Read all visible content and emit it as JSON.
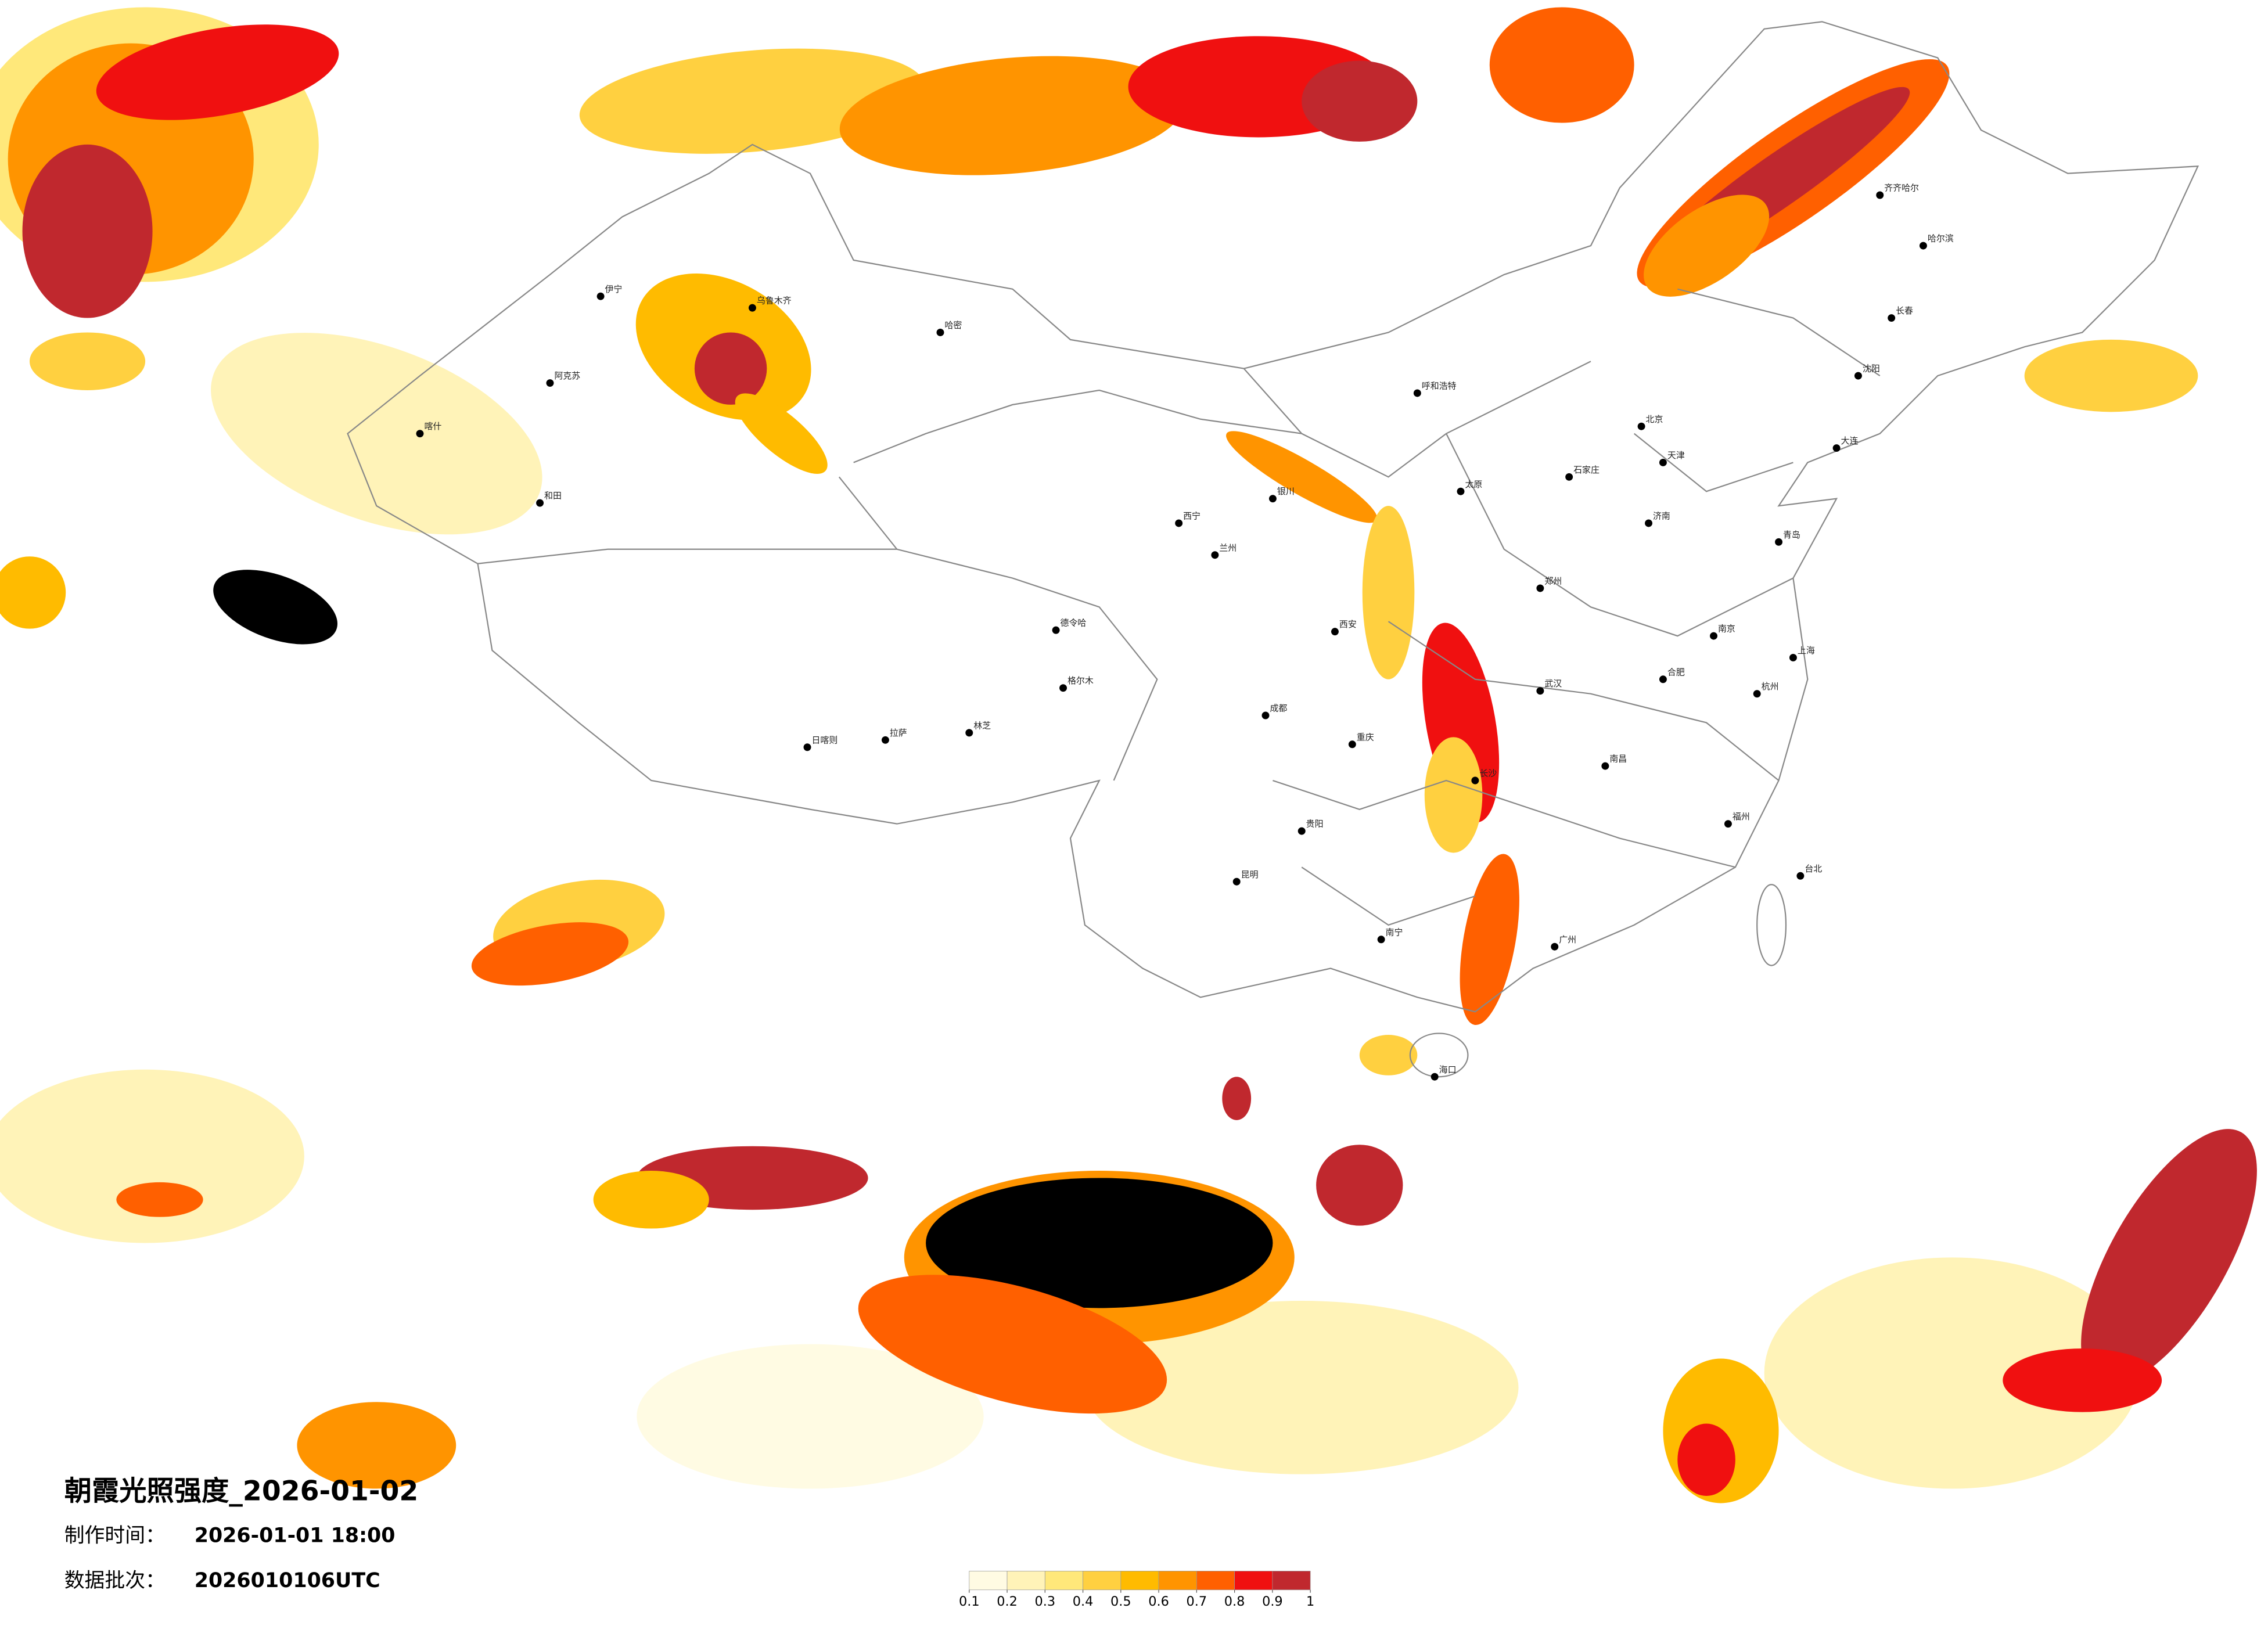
{
  "title": "朝霞光照强度_2026-01-02",
  "info": [
    {
      "label": "制作时间：",
      "value": "2026-01-01 18:00"
    },
    {
      "label": "数据批次：",
      "value": "2026010106UTC"
    }
  ],
  "colorbar": {
    "ticks": [
      0.1,
      0.2,
      0.3,
      0.4,
      0.5,
      0.6,
      0.7,
      0.8,
      0.9,
      1
    ],
    "colors": [
      "#fffbe3",
      "#fff3b8",
      "#ffe87a",
      "#ffd040",
      "#ffbb00",
      "#ff9400",
      "#ff6000",
      "#f01010",
      "#c0282e"
    ]
  },
  "cities": [
    "伊宁",
    "阿克苏",
    "和田",
    "喀什",
    "乌鲁木齐",
    "哈密",
    "格尔木",
    "德令哈",
    "拉萨",
    "日喀则",
    "林芝",
    "西宁",
    "兰州",
    "银川",
    "呼和浩特",
    "北京",
    "天津",
    "石家庄",
    "太原",
    "郑州",
    "西安",
    "成都",
    "重庆",
    "贵阳",
    "昆明",
    "南宁",
    "广州",
    "长沙",
    "武汉",
    "南昌",
    "杭州",
    "上海",
    "南京",
    "合肥",
    "福州",
    "台北",
    "海口",
    "哈尔滨",
    "长春",
    "沈阳",
    "济南",
    "青岛",
    "齐齐哈尔",
    "大连"
  ]
}
